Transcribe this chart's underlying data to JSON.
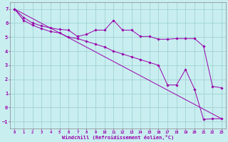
{
  "xlabel": "Windchill (Refroidissement éolien,°C)",
  "background_color": "#c8eef0",
  "line_color": "#9900aa",
  "grid_color": "#99cccc",
  "xlim": [
    -0.5,
    23.5
  ],
  "ylim": [
    -1.5,
    7.5
  ],
  "yticks": [
    -1,
    0,
    1,
    2,
    3,
    4,
    5,
    6,
    7
  ],
  "xticks": [
    0,
    1,
    2,
    3,
    4,
    5,
    6,
    7,
    8,
    9,
    10,
    11,
    12,
    13,
    14,
    15,
    16,
    17,
    18,
    19,
    20,
    21,
    22,
    23
  ],
  "line1_x": [
    0,
    1,
    2,
    3,
    4,
    5,
    6,
    7,
    8,
    9,
    10,
    11,
    12,
    13,
    14,
    15,
    16,
    17,
    18,
    19,
    20,
    21,
    22,
    23
  ],
  "line1_y": [
    7.0,
    6.4,
    6.0,
    5.8,
    5.65,
    5.55,
    5.5,
    5.05,
    5.2,
    5.5,
    5.5,
    6.2,
    5.5,
    5.5,
    5.05,
    5.05,
    4.85,
    4.85,
    4.9,
    4.9,
    4.9,
    4.35,
    1.5,
    1.4
  ],
  "line2_x": [
    0,
    1,
    2,
    3,
    4,
    5,
    6,
    7,
    8,
    9,
    10,
    11,
    12,
    13,
    14,
    15,
    16,
    17,
    18,
    19,
    20,
    21,
    22,
    23
  ],
  "line2_y": [
    7.0,
    6.2,
    5.85,
    5.6,
    5.4,
    5.3,
    5.0,
    4.9,
    4.7,
    4.5,
    4.3,
    4.0,
    3.8,
    3.6,
    3.4,
    3.2,
    3.0,
    1.6,
    1.6,
    2.7,
    1.3,
    -0.85,
    -0.8,
    -0.8
  ],
  "line3_x": [
    0,
    23
  ],
  "line3_y": [
    7.0,
    -0.8
  ]
}
